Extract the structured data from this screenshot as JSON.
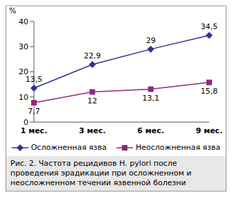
{
  "chart_data": {
    "type": "line",
    "title": "Рис. 2. Частота рецидивов H. pylori после проведения эрадикации при осложненном и неосложненном течении язвенной болезни",
    "y_label": "%",
    "categories": [
      "1 мес.",
      "3 мес.",
      "6 мес.",
      "9 мес."
    ],
    "series": [
      {
        "name": "Осложненная язва",
        "color": "#2e3192",
        "marker": "diamond",
        "values": [
          13.5,
          22.9,
          29,
          34.5
        ],
        "value_labels": [
          "13,5",
          "22,9",
          "29",
          "34,5"
        ]
      },
      {
        "name": "Неосложненная язва",
        "color": "#8b2a7f",
        "marker": "square",
        "values": [
          7.7,
          12,
          13.1,
          15.8
        ],
        "value_labels": [
          "7,7",
          "12",
          "13,1",
          "15,8"
        ]
      }
    ],
    "ylim": [
      0,
      40
    ],
    "yticks": [
      0,
      10,
      20,
      30,
      40
    ],
    "grid": false,
    "legend": "bottom",
    "data_labels": true
  }
}
